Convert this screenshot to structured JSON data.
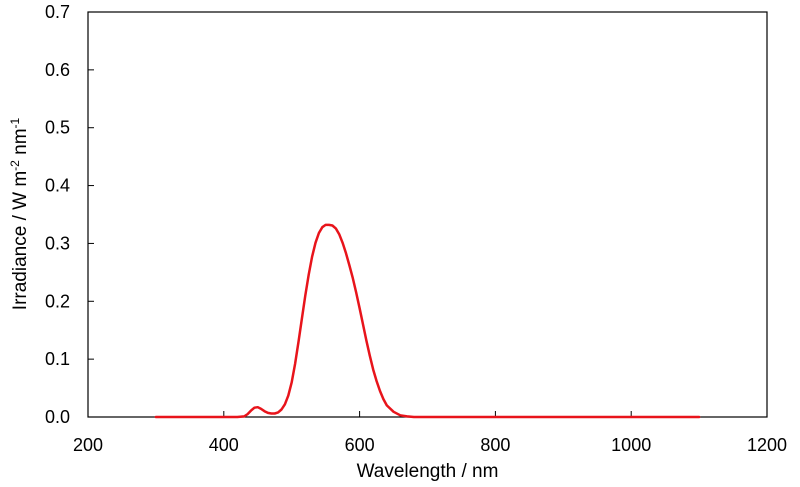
{
  "chart_data": {
    "type": "line",
    "title": "",
    "xlabel": "Wavelength / nm",
    "ylabel_parts": [
      "Irradiance / W m",
      "-2",
      " nm",
      "-1"
    ],
    "xlim": [
      200,
      1200
    ],
    "ylim": [
      0,
      0.7
    ],
    "xticks": [
      200,
      400,
      600,
      800,
      1000,
      1200
    ],
    "yticks": [
      0.0,
      0.1,
      0.2,
      0.3,
      0.4,
      0.5,
      0.6,
      0.7
    ],
    "xtick_labels": [
      "200",
      "400",
      "600",
      "800",
      "1000",
      "1200"
    ],
    "ytick_labels": [
      "0.0",
      "0.1",
      "0.2",
      "0.3",
      "0.4",
      "0.5",
      "0.6",
      "0.7"
    ],
    "grid": false,
    "legend": "none",
    "series": [
      {
        "color": "#e8141b",
        "x": [
          300,
          400,
          420,
          430,
          435,
          440,
          445,
          450,
          455,
          460,
          465,
          470,
          475,
          480,
          485,
          490,
          495,
          500,
          505,
          510,
          515,
          520,
          525,
          530,
          535,
          540,
          545,
          550,
          555,
          560,
          565,
          570,
          575,
          580,
          585,
          590,
          595,
          600,
          605,
          610,
          615,
          620,
          625,
          630,
          635,
          640,
          650,
          660,
          670,
          680,
          700,
          800,
          900,
          1000,
          1100
        ],
        "y": [
          0.0,
          0.0,
          0.0,
          0.001,
          0.005,
          0.011,
          0.016,
          0.017,
          0.014,
          0.01,
          0.007,
          0.006,
          0.006,
          0.008,
          0.013,
          0.022,
          0.037,
          0.06,
          0.092,
          0.13,
          0.17,
          0.21,
          0.246,
          0.277,
          0.301,
          0.318,
          0.328,
          0.332,
          0.332,
          0.331,
          0.326,
          0.316,
          0.301,
          0.283,
          0.262,
          0.24,
          0.215,
          0.188,
          0.16,
          0.132,
          0.106,
          0.082,
          0.062,
          0.045,
          0.031,
          0.02,
          0.009,
          0.003,
          0.001,
          0.0,
          0.0,
          0.0,
          0.0,
          0.0,
          0.0
        ]
      }
    ]
  }
}
